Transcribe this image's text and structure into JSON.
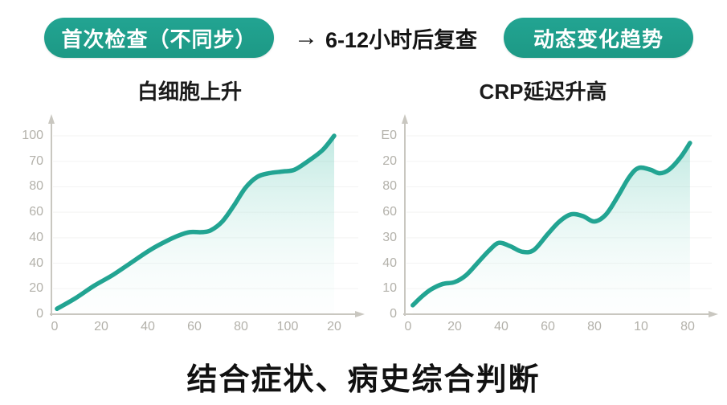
{
  "header": {
    "badge_first_check": "首次检查（不同步）",
    "arrow_icon": "→",
    "recheck_label": "6-12小时后复查",
    "badge_trend": "动态变化趋势"
  },
  "footer": {
    "conclusion": "结合症状、病史综合判断"
  },
  "colors": {
    "teal": "#22a492",
    "teal_dark": "#1d9985",
    "axis": "#c9c7c0",
    "tick_text": "#b3b1aa",
    "grid": "#b5b3ac",
    "fill_top": "rgba(117,207,190,0.45)",
    "fill_bottom": "rgba(235,249,246,0.08)"
  },
  "chart_data": [
    {
      "type": "area",
      "title": "白细胞上升",
      "x_ticks": [
        "0",
        "20",
        "40",
        "60",
        "80",
        "100",
        "20"
      ],
      "y_ticks": [
        "100",
        "70",
        "80",
        "60",
        "40",
        "40",
        "20",
        "0"
      ],
      "xlim": [
        0,
        125
      ],
      "ylim": [
        0,
        105
      ],
      "grid": true,
      "legend": null,
      "points": [
        [
          1,
          3
        ],
        [
          9,
          9
        ],
        [
          17,
          16
        ],
        [
          25,
          22
        ],
        [
          33,
          29
        ],
        [
          41,
          36
        ],
        [
          48,
          41
        ],
        [
          53,
          44
        ],
        [
          58,
          46
        ],
        [
          63,
          46
        ],
        [
          67,
          47
        ],
        [
          72,
          52
        ],
        [
          77,
          61
        ],
        [
          82,
          71
        ],
        [
          87,
          77
        ],
        [
          92,
          79
        ],
        [
          98,
          80
        ],
        [
          103,
          81
        ],
        [
          109,
          86
        ],
        [
          115,
          92
        ],
        [
          120,
          100
        ]
      ]
    },
    {
      "type": "area",
      "title": "CRP延迟升高",
      "x_ticks": [
        "0",
        "20",
        "40",
        "60",
        "80",
        "10",
        "80"
      ],
      "y_ticks": [
        "E0",
        "20",
        "80",
        "60",
        "30",
        "40",
        "10",
        "0"
      ],
      "xlim": [
        0,
        125
      ],
      "ylim": [
        0,
        105
      ],
      "grid": true,
      "legend": null,
      "points": [
        [
          2,
          5
        ],
        [
          6,
          10
        ],
        [
          10,
          14
        ],
        [
          15,
          17
        ],
        [
          20,
          18
        ],
        [
          25,
          22
        ],
        [
          30,
          29
        ],
        [
          35,
          36
        ],
        [
          39,
          40
        ],
        [
          44,
          38
        ],
        [
          49,
          35
        ],
        [
          54,
          36
        ],
        [
          60,
          45
        ],
        [
          65,
          52
        ],
        [
          70,
          56
        ],
        [
          75,
          55
        ],
        [
          80,
          52
        ],
        [
          85,
          56
        ],
        [
          90,
          66
        ],
        [
          95,
          77
        ],
        [
          99,
          82
        ],
        [
          104,
          81
        ],
        [
          108,
          79
        ],
        [
          112,
          81
        ],
        [
          117,
          88
        ],
        [
          121,
          96
        ]
      ]
    }
  ]
}
